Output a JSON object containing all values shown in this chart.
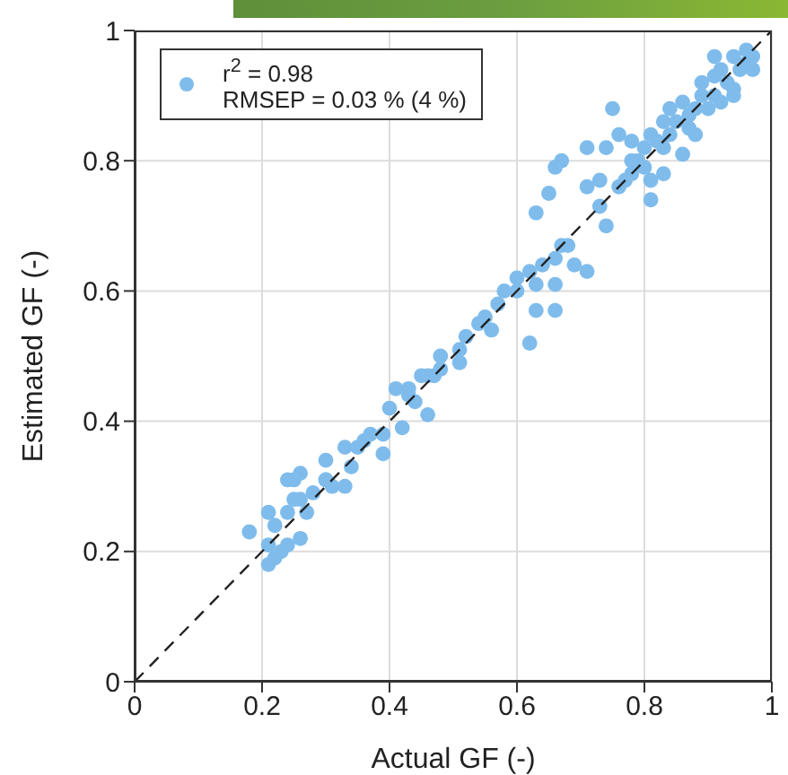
{
  "chart_data": {
    "type": "scatter",
    "xlabel": "Actual GF (-)",
    "ylabel": "Estimated GF (-)",
    "xlim": [
      0,
      1
    ],
    "ylim": [
      0,
      1
    ],
    "xticks": [
      0,
      0.2,
      0.4,
      0.6,
      0.8,
      1
    ],
    "yticks": [
      0,
      0.2,
      0.4,
      0.6,
      0.8,
      1
    ],
    "grid": true,
    "legend": "top left",
    "marker": "circle",
    "series": [
      {
        "name": "r$^{2}$ = 0.98\nRMSEP = 0.03 % (4 %)",
        "color": "#7fbcec",
        "x": [
          0.18,
          0.21,
          0.21,
          0.23,
          0.24,
          0.26,
          0.25,
          0.26,
          0.27,
          0.3,
          0.3,
          0.31,
          0.33,
          0.33,
          0.34,
          0.36,
          0.39,
          0.39,
          0.4,
          0.41,
          0.42,
          0.44,
          0.46,
          0.45,
          0.48,
          0.51,
          0.43,
          0.47,
          0.51,
          0.54,
          0.58,
          0.6,
          0.62,
          0.63,
          0.66,
          0.66,
          0.64,
          0.67,
          0.69,
          0.71,
          0.63,
          0.65,
          0.66,
          0.67,
          0.71,
          0.71,
          0.74,
          0.73,
          0.74,
          0.73,
          0.76,
          0.75,
          0.78,
          0.81,
          0.81,
          0.79,
          0.81,
          0.83,
          0.84,
          0.88,
          0.87,
          0.89,
          0.91,
          0.92,
          0.94,
          0.96,
          0.97,
          0.91,
          0.94,
          0.86,
          0.83,
          0.78,
          0.76,
          0.78,
          0.8,
          0.82,
          0.84,
          0.85,
          0.87,
          0.88,
          0.9,
          0.91,
          0.93,
          0.95,
          0.96,
          0.97,
          0.92,
          0.94,
          0.89,
          0.86,
          0.83,
          0.8,
          0.77,
          0.52,
          0.55,
          0.57,
          0.6,
          0.62,
          0.56,
          0.63,
          0.66,
          0.68,
          0.22,
          0.24,
          0.26,
          0.28,
          0.3,
          0.35,
          0.37,
          0.43,
          0.46,
          0.48,
          0.21,
          0.22,
          0.24,
          0.25
        ],
        "values": [
          0.23,
          0.26,
          0.18,
          0.2,
          0.31,
          0.32,
          0.28,
          0.22,
          0.26,
          0.34,
          0.31,
          0.3,
          0.36,
          0.3,
          0.33,
          0.37,
          0.38,
          0.35,
          0.42,
          0.45,
          0.39,
          0.43,
          0.41,
          0.47,
          0.48,
          0.49,
          0.45,
          0.47,
          0.51,
          0.55,
          0.6,
          0.62,
          0.52,
          0.57,
          0.57,
          0.61,
          0.64,
          0.67,
          0.64,
          0.63,
          0.72,
          0.75,
          0.79,
          0.8,
          0.76,
          0.82,
          0.82,
          0.77,
          0.7,
          0.73,
          0.76,
          0.88,
          0.83,
          0.77,
          0.74,
          0.8,
          0.84,
          0.82,
          0.88,
          0.84,
          0.87,
          0.9,
          0.93,
          0.89,
          0.96,
          0.97,
          0.94,
          0.96,
          0.91,
          0.81,
          0.78,
          0.78,
          0.84,
          0.8,
          0.79,
          0.83,
          0.84,
          0.86,
          0.85,
          0.88,
          0.88,
          0.9,
          0.92,
          0.94,
          0.95,
          0.96,
          0.94,
          0.9,
          0.92,
          0.89,
          0.86,
          0.82,
          0.77,
          0.53,
          0.56,
          0.58,
          0.6,
          0.63,
          0.54,
          0.61,
          0.65,
          0.67,
          0.24,
          0.26,
          0.28,
          0.29,
          0.31,
          0.36,
          0.38,
          0.44,
          0.47,
          0.5,
          0.21,
          0.19,
          0.21,
          0.31
        ]
      },
      {
        "type": "line",
        "color": "#222222",
        "line_style": "dashed",
        "marker": "none",
        "x": [
          0,
          1
        ],
        "values": [
          0,
          1
        ]
      }
    ]
  }
}
